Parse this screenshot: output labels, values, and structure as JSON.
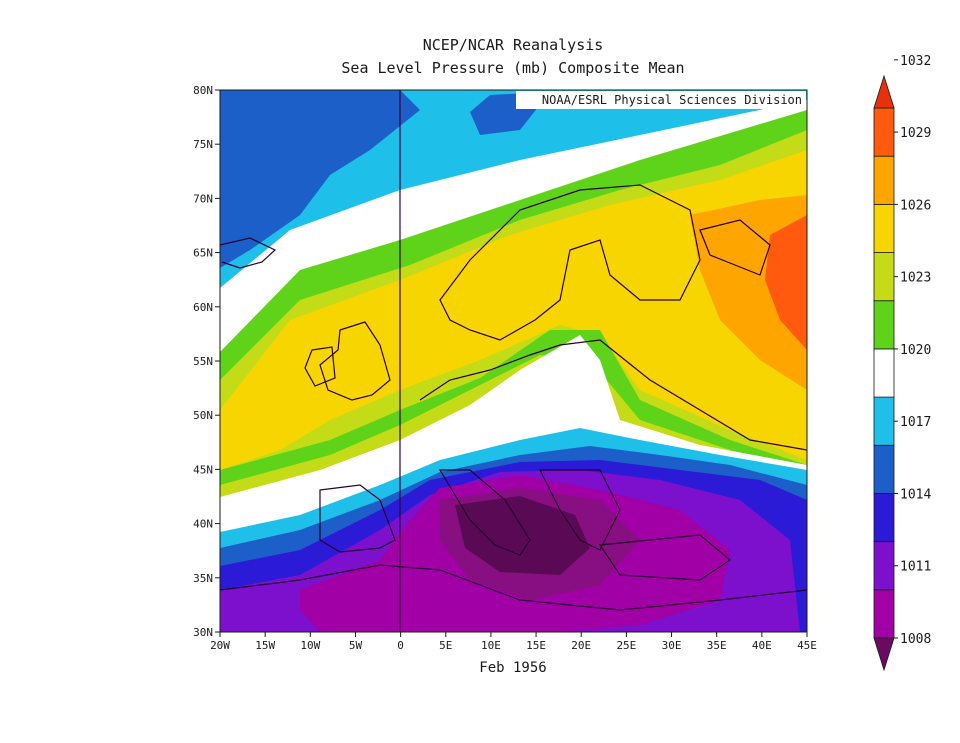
{
  "title": {
    "line1": "NCEP/NCAR Reanalysis",
    "line2": "Sea Level Pressure (mb) Composite Mean"
  },
  "credit": "NOAA/ESRL Physical Sciences Division",
  "xlabel": "Feb 1956",
  "map": {
    "lon_range": [
      -20,
      45
    ],
    "lat_range": [
      30,
      80
    ],
    "x_ticks": [
      "20W",
      "15W",
      "10W",
      "5W",
      "0",
      "5E",
      "10E",
      "15E",
      "20E",
      "25E",
      "30E",
      "35E",
      "40E",
      "45E"
    ],
    "y_ticks": [
      "30N",
      "35N",
      "40N",
      "45N",
      "50N",
      "55N",
      "60N",
      "65N",
      "70N",
      "75N",
      "80N"
    ],
    "pressure_field_description_levels_mb": [
      1008,
      1011,
      1014,
      1017,
      1020,
      1023,
      1026,
      1029,
      1032
    ]
  },
  "colorbar": {
    "labels": [
      "1008",
      "1011",
      "1014",
      "1017",
      "1020",
      "1023",
      "1026",
      "1029",
      "1032"
    ],
    "colors": [
      "#6a0a63",
      "#a100a6",
      "#7c10cc",
      "#2b1ad6",
      "#1c5fc8",
      "#1ec0ea",
      "#ffffff",
      "#5fd319",
      "#c4dc17",
      "#f7d500",
      "#ffa500",
      "#ff5a0e",
      "#e8300a"
    ]
  },
  "chart_data": {
    "type": "heatmap",
    "title": "NCEP/NCAR Reanalysis — Sea Level Pressure (mb) Composite Mean",
    "xlabel": "Feb 1956",
    "x_range_deg": [
      -20,
      45
    ],
    "y_range_deg": [
      30,
      80
    ],
    "levels": [
      1008,
      1011,
      1014,
      1017,
      1020,
      1023,
      1026,
      1029,
      1032
    ],
    "features": [
      {
        "type": "low",
        "center_lon": 14,
        "center_lat": 39,
        "value_mb": 1008
      },
      {
        "type": "high",
        "center_lon": 43,
        "center_lat": 60,
        "value_mb": 1031
      },
      {
        "type": "ridge",
        "region": "Scandinavia-British Isles",
        "value_mb": 1026
      },
      {
        "type": "low",
        "region": "Greenland-Iceland",
        "value_mb": 1015
      }
    ]
  }
}
